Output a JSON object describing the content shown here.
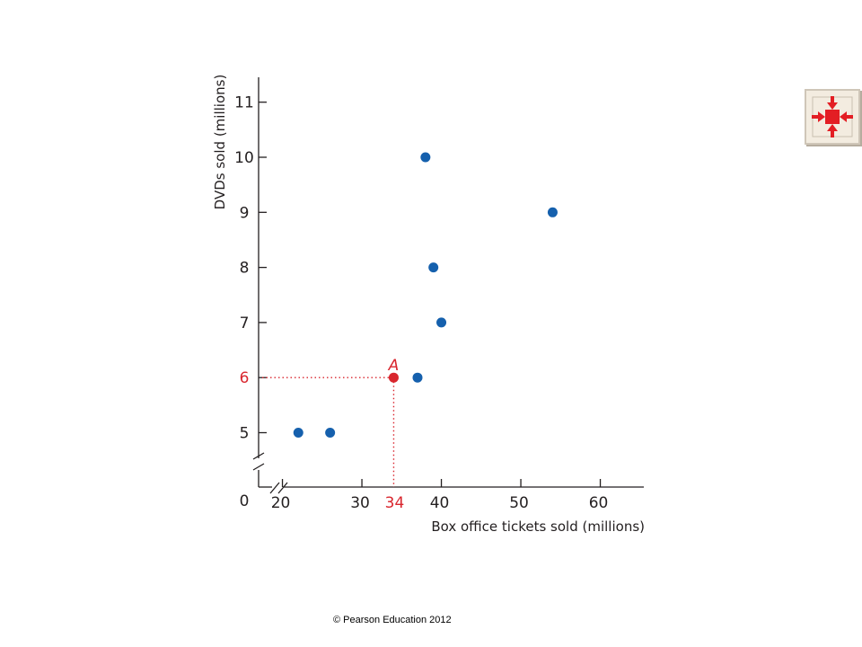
{
  "chart_data": {
    "type": "scatter",
    "xlabel": "Box office tickets sold (millions)",
    "ylabel": "DVDs sold (millions)",
    "xlim": [
      17,
      63
    ],
    "ylim": [
      4.5,
      11.5
    ],
    "axis_breaks": [
      "x",
      "y"
    ],
    "origin_label": "0",
    "x_ticks": [
      "20",
      "30",
      "40",
      "50",
      "60"
    ],
    "y_ticks": [
      "5",
      "6",
      "7",
      "8",
      "9",
      "10",
      "11"
    ],
    "series": [
      {
        "color": "#1560ad",
        "points": [
          {
            "x": 22,
            "y": 5
          },
          {
            "x": 26,
            "y": 5
          },
          {
            "x": 37,
            "y": 6
          },
          {
            "x": 38,
            "y": 10
          },
          {
            "x": 39,
            "y": 8
          },
          {
            "x": 40,
            "y": 7
          },
          {
            "x": 54,
            "y": 9
          }
        ]
      }
    ],
    "highlight": {
      "label": "A",
      "x": 34,
      "y": 6,
      "x_label": "34",
      "y_label": "6",
      "color": "#d9262e"
    },
    "grid": false
  },
  "nav_icon": "compress-arrows-icon",
  "footer": {
    "copyright": "© Pearson Education 2012"
  }
}
